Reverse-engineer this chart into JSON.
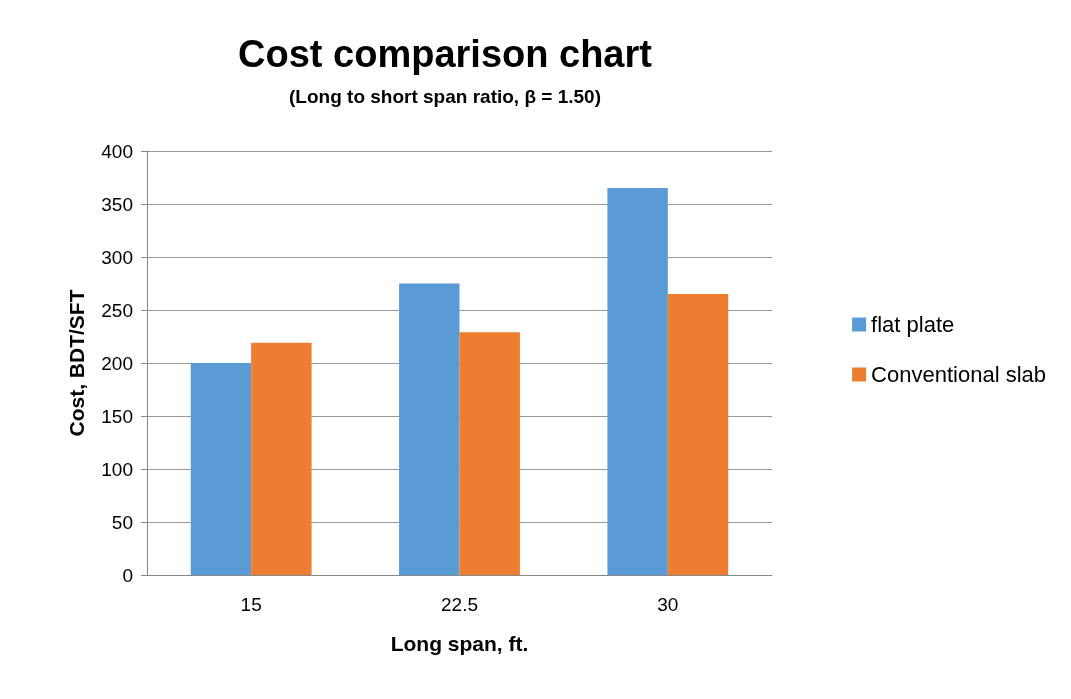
{
  "chart_data": {
    "type": "bar",
    "title": "Cost comparison chart",
    "subtitle": "(Long to short span ratio, β = 1.50)",
    "xlabel": "Long span, ft.",
    "ylabel": "Cost, BDT/SFT",
    "categories": [
      "15",
      "22.5",
      "30"
    ],
    "series": [
      {
        "name": "flat plate",
        "color": "#5b9bd5",
        "values": [
          200,
          275,
          365
        ]
      },
      {
        "name": "Conventional slab",
        "color": "#ed7d31",
        "values": [
          219,
          229,
          265
        ]
      }
    ],
    "ylim": [
      0,
      400
    ],
    "yticks": [
      0,
      50,
      100,
      150,
      200,
      250,
      300,
      350,
      400
    ],
    "grid": "y",
    "legend": "right"
  }
}
